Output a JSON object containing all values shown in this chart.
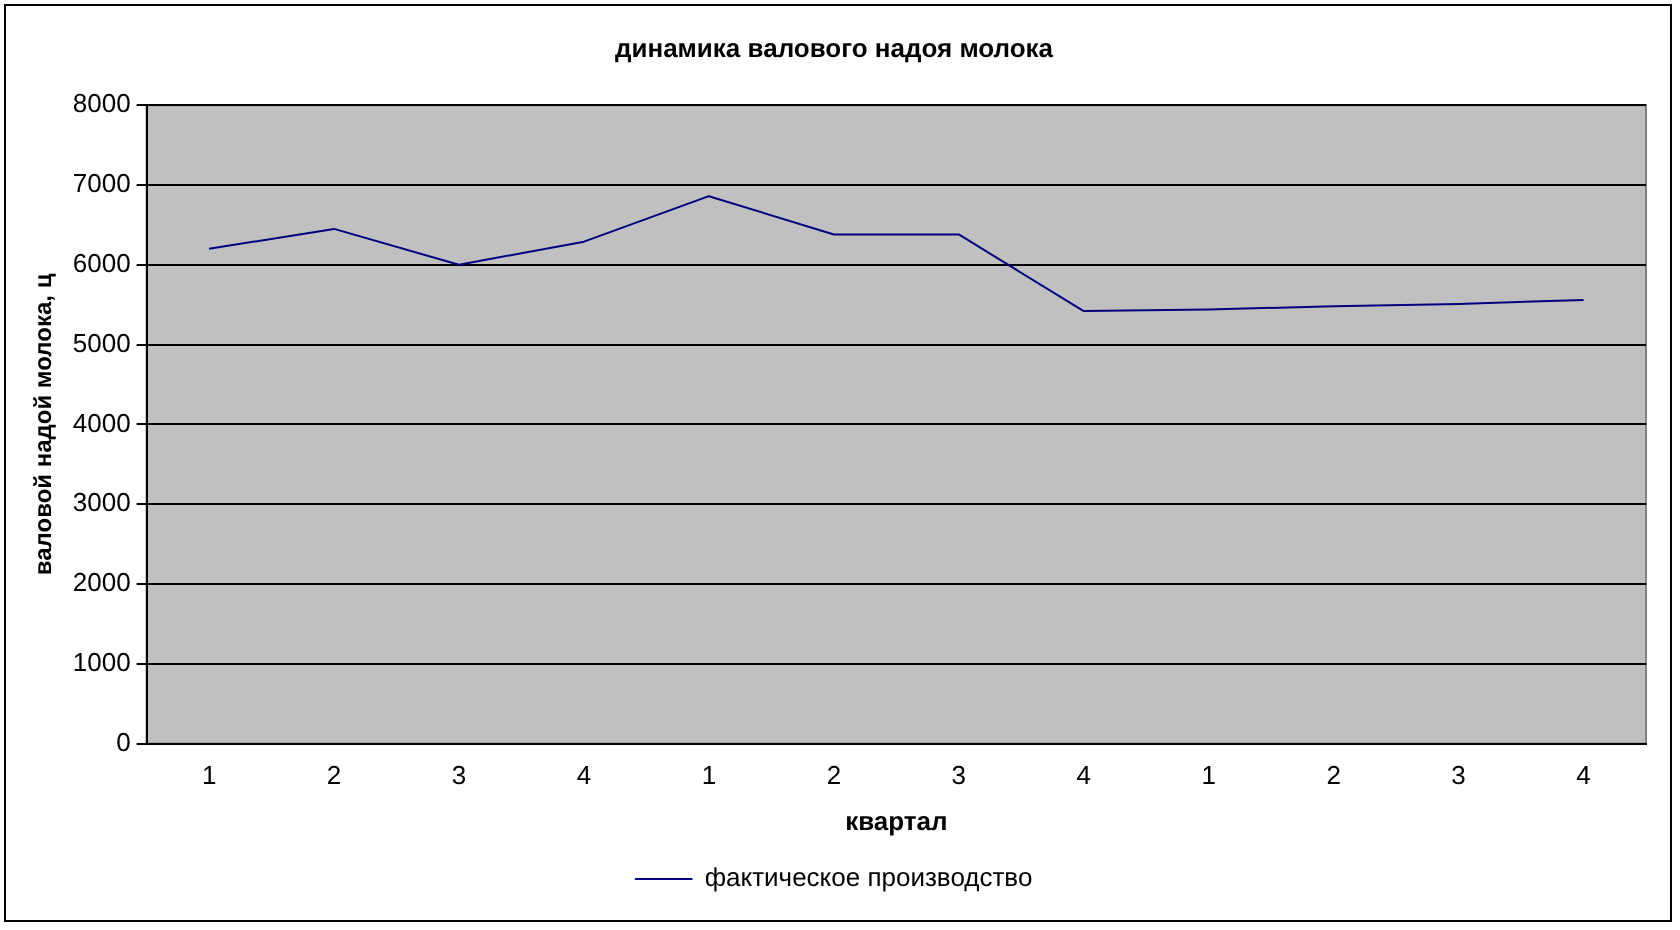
{
  "chart_data": {
    "type": "line",
    "title": "динамика валового надоя молока",
    "xlabel": "квартал",
    "ylabel": "валовой надой молока, ц",
    "categories": [
      "1",
      "2",
      "3",
      "4",
      "1",
      "2",
      "3",
      "4",
      "1",
      "2",
      "3",
      "4"
    ],
    "series": [
      {
        "name": "фактическое производство",
        "color": "#000080",
        "values": [
          6200,
          6450,
          6000,
          6290,
          6860,
          6380,
          6380,
          5420,
          5440,
          5480,
          5510,
          5560
        ]
      }
    ],
    "ylim": [
      0,
      8000
    ],
    "yticks": [
      0,
      1000,
      2000,
      3000,
      4000,
      5000,
      6000,
      7000,
      8000
    ],
    "grid": "y",
    "legend": "bottom",
    "marker": "none",
    "line_style": "solid"
  }
}
